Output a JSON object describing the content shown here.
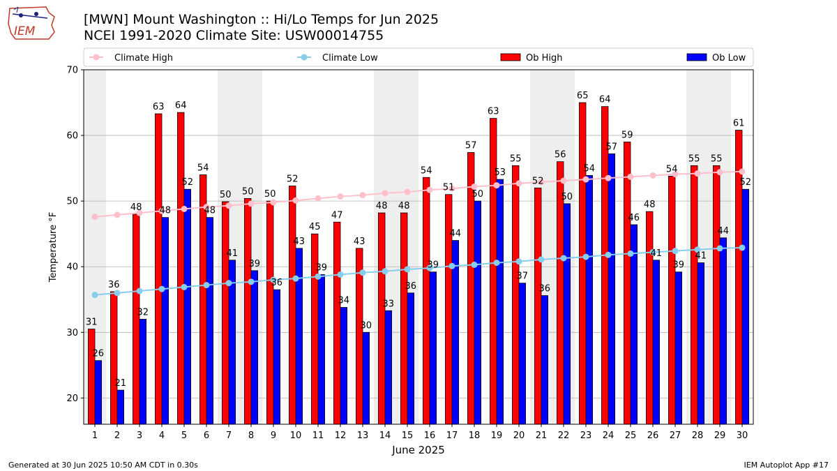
{
  "titles": {
    "line1": "[MWN] Mount Washington :: Hi/Lo Temps for Jun 2025",
    "line2": "NCEI 1991-2020 Climate Site: USW00014755"
  },
  "footer": {
    "left": "Generated at 30 Jun 2025 10:50 AM CDT in 0.30s",
    "right": "IEM Autoplot App #17"
  },
  "logo": {
    "text": "IEM"
  },
  "colors": {
    "ob_high": "#ff0000",
    "ob_low": "#0000ff",
    "climate_high": "#ffc0cb",
    "climate_low": "#87ceeb",
    "weekend_band": "#eeeeee"
  },
  "chart_data": {
    "type": "bar",
    "xlabel": "June 2025",
    "ylabel": "Temperature °F",
    "ylim": [
      16,
      70
    ],
    "yticks": [
      20,
      30,
      40,
      50,
      60,
      70
    ],
    "grid": true,
    "legend_position": "top",
    "categories": [
      "1",
      "2",
      "3",
      "4",
      "5",
      "6",
      "7",
      "8",
      "9",
      "10",
      "11",
      "12",
      "13",
      "14",
      "15",
      "16",
      "17",
      "18",
      "19",
      "20",
      "21",
      "22",
      "23",
      "24",
      "25",
      "26",
      "27",
      "28",
      "29",
      "30"
    ],
    "shaded_days": [
      1,
      7,
      8,
      14,
      15,
      21,
      22,
      28,
      29
    ],
    "series": [
      {
        "name": "Ob High",
        "kind": "bar",
        "values": [
          30.5,
          36.2,
          48,
          63.3,
          63.5,
          54,
          49.9,
          50.4,
          50,
          52.3,
          45,
          46.8,
          42.8,
          48.2,
          48.2,
          53.6,
          51,
          57.4,
          62.6,
          55.4,
          52,
          56,
          65,
          64.4,
          59,
          48.4,
          53.8,
          55.4,
          55.4,
          60.8
        ],
        "labels": [
          "31",
          "36",
          "48",
          "63",
          "64",
          "54",
          "50",
          "50",
          "50",
          "52",
          "45",
          "47",
          "43",
          "48",
          "48",
          "54",
          "51",
          "57",
          "63",
          "55",
          "52",
          "56",
          "65",
          "64",
          "59",
          "48",
          "54",
          "55",
          "55",
          "61"
        ]
      },
      {
        "name": "Ob Low",
        "kind": "bar",
        "values": [
          25.7,
          21.2,
          32,
          47.5,
          51.8,
          47.5,
          41,
          39.4,
          36.5,
          42.8,
          38.8,
          33.8,
          30,
          33.3,
          36,
          39.2,
          44,
          50,
          53.3,
          37.5,
          35.6,
          49.6,
          53.9,
          57.2,
          46.4,
          41,
          39.2,
          40.6,
          44.4,
          51.8
        ],
        "labels": [
          "26",
          "21",
          "32",
          "48",
          "52",
          "48",
          "41",
          "39",
          "36",
          "43",
          "39",
          "34",
          "30",
          "33",
          "36",
          "39",
          "44",
          "50",
          "53",
          "37",
          "36",
          "50",
          "54",
          "57",
          "46",
          "41",
          "39",
          "41",
          "44",
          "52"
        ]
      },
      {
        "name": "Climate High",
        "kind": "line",
        "values": [
          47.6,
          47.9,
          48.2,
          48.5,
          48.8,
          49.1,
          49.3,
          49.6,
          49.8,
          50.1,
          50.4,
          50.7,
          50.9,
          51.2,
          51.4,
          51.7,
          51.9,
          52.2,
          52.4,
          52.7,
          52.9,
          53.1,
          53.3,
          53.5,
          53.7,
          53.9,
          54.1,
          54.2,
          54.4,
          54.5
        ]
      },
      {
        "name": "Climate Low",
        "kind": "line",
        "values": [
          35.7,
          36,
          36.3,
          36.6,
          36.9,
          37.2,
          37.5,
          37.7,
          38,
          38.2,
          38.5,
          38.8,
          39.1,
          39.3,
          39.6,
          39.8,
          40.1,
          40.3,
          40.6,
          40.8,
          41.1,
          41.3,
          41.5,
          41.8,
          42,
          42.2,
          42.4,
          42.6,
          42.8,
          42.9
        ]
      }
    ]
  }
}
